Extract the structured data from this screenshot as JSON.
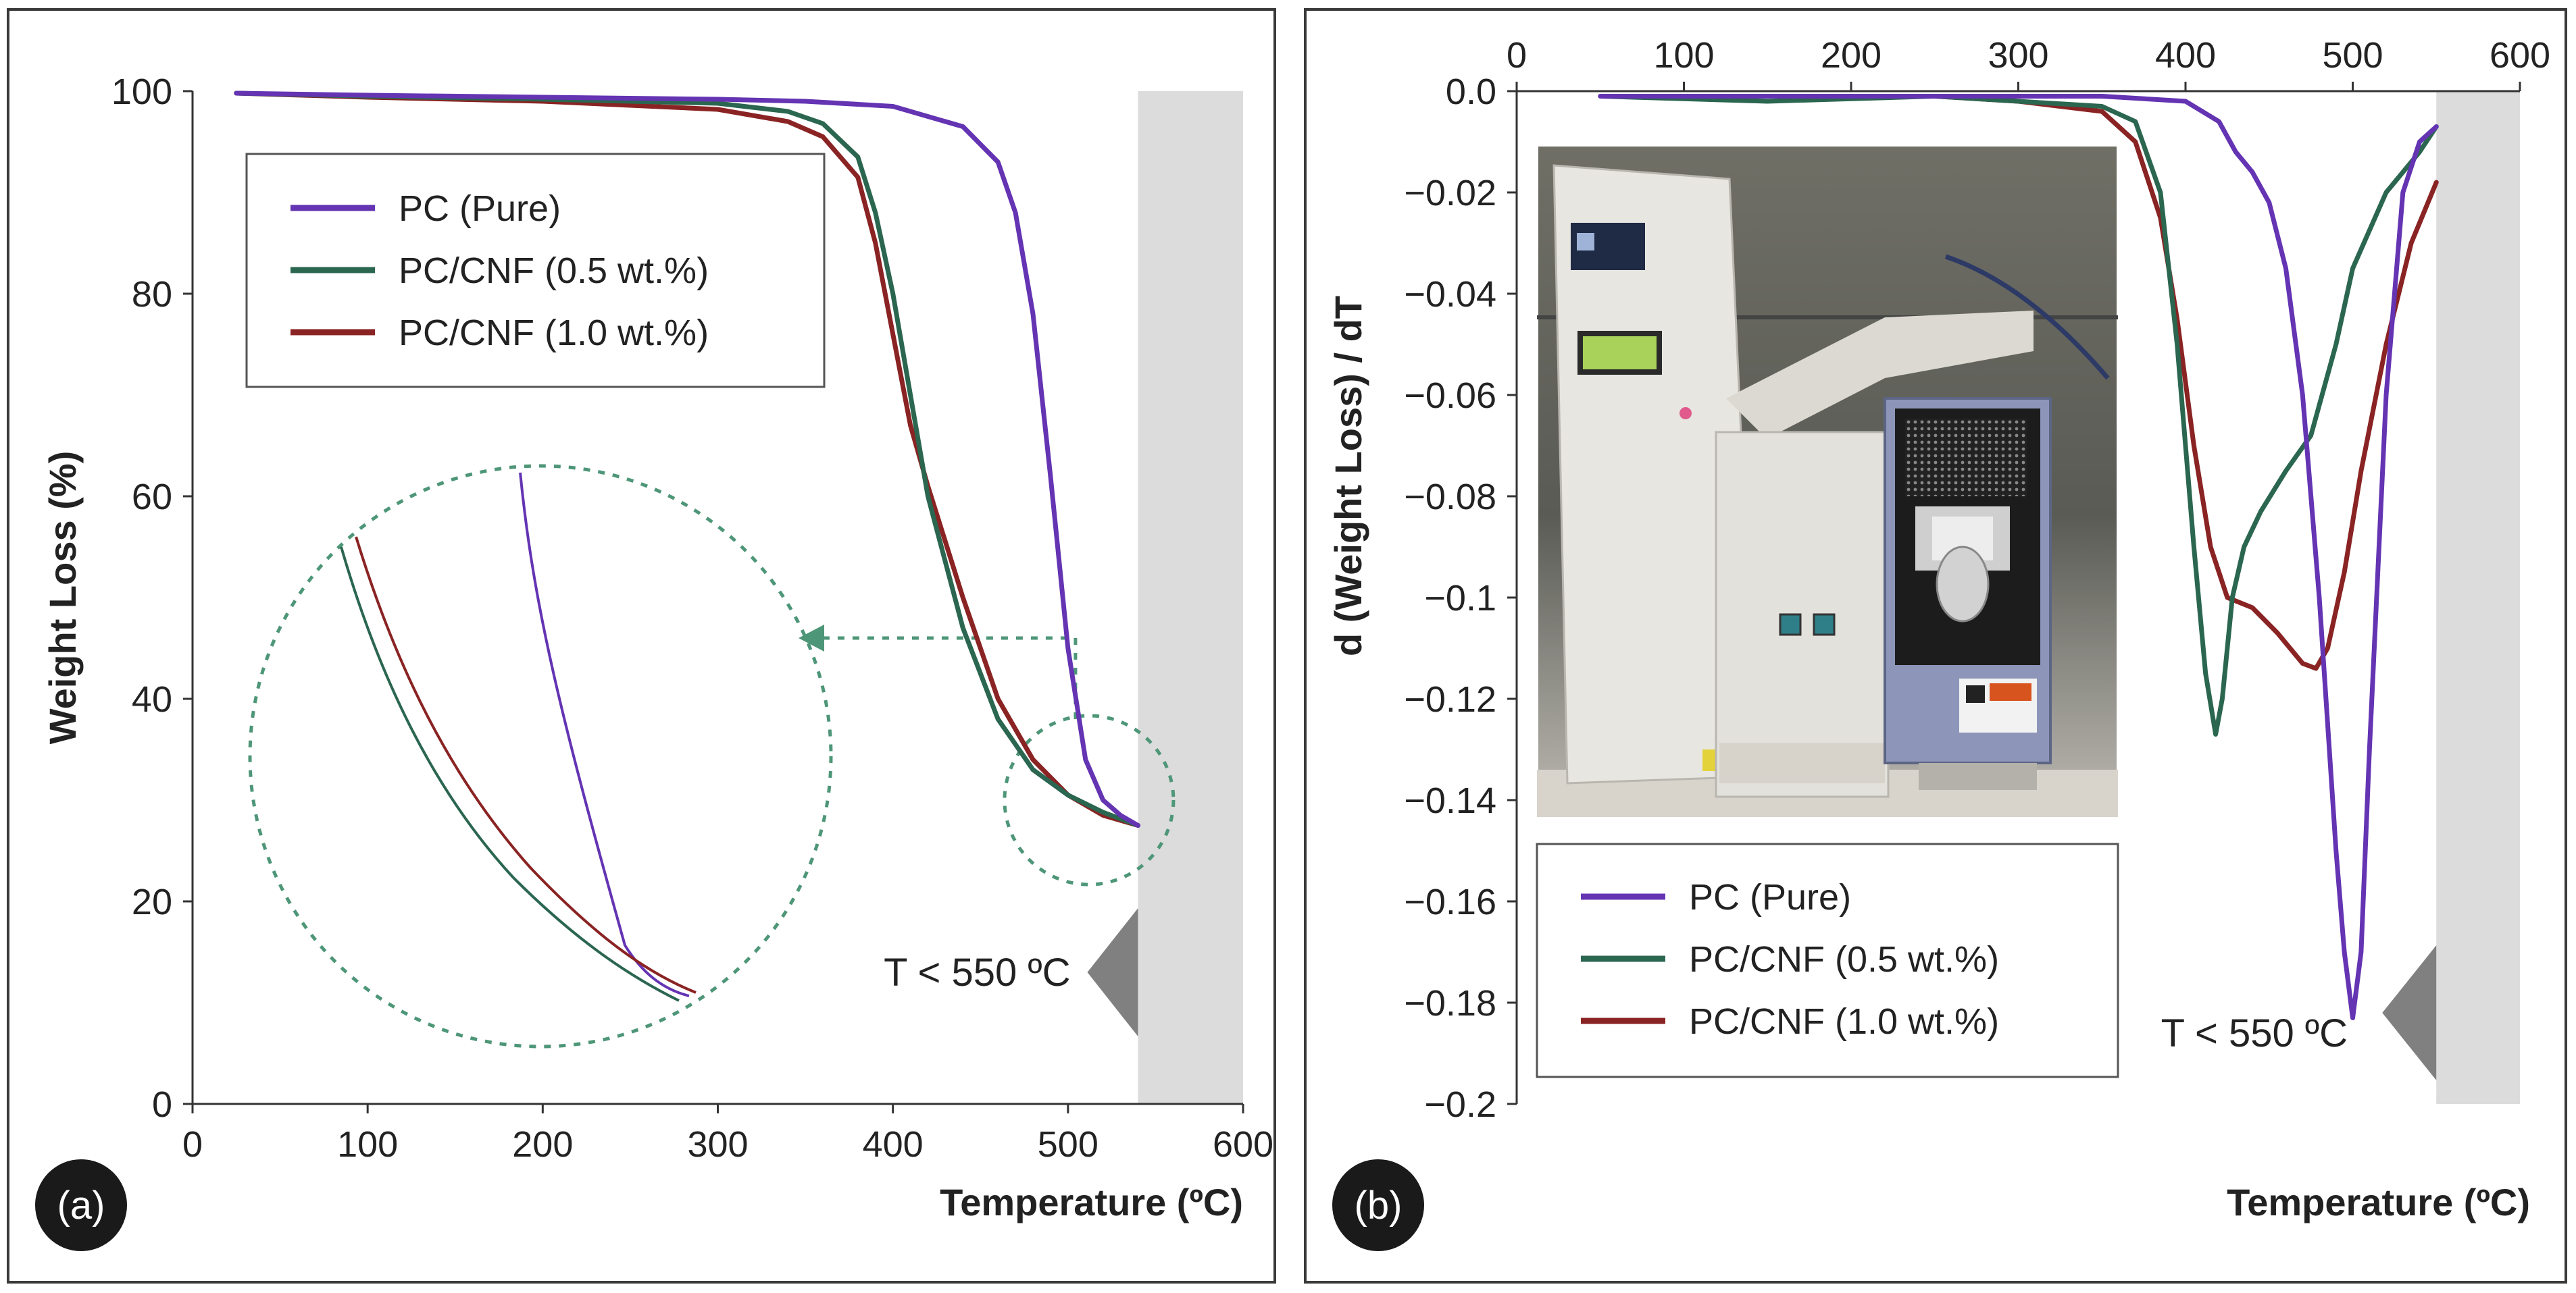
{
  "colors": {
    "pc_pure": "#6434b3",
    "pc_cnf_05": "#2b6650",
    "pc_cnf_10": "#8a2323",
    "region": "#dcdcdc",
    "marker": "#808080",
    "zoom": "#4e9678",
    "label_bg": "#1a1a1a"
  },
  "chart_data": [
    {
      "panel_label": "(a)",
      "type": "line",
      "title": "",
      "xlabel": "Temperature (ºC)",
      "ylabel": "Weight Loss (%)",
      "xlim": [
        0,
        600
      ],
      "ylim": [
        0,
        100
      ],
      "xticks": [
        "0",
        "100",
        "200",
        "300",
        "400",
        "500",
        "600"
      ],
      "yticks": [
        "0",
        "20",
        "40",
        "60",
        "80",
        "100"
      ],
      "legend_position": "upper-left",
      "grid": false,
      "shaded_region": {
        "from": 540,
        "to": 600
      },
      "annotation": "T < 550 ºC",
      "zoom_inset": true,
      "series": [
        {
          "name": "PC (Pure)",
          "color_key": "pc_pure",
          "x": [
            25,
            100,
            200,
            300,
            350,
            400,
            440,
            460,
            470,
            480,
            490,
            500,
            510,
            520,
            530,
            540
          ],
          "y": [
            99.8,
            99.6,
            99.4,
            99.2,
            99.0,
            98.5,
            96.5,
            93,
            88,
            78,
            62,
            45,
            34,
            30,
            28.5,
            27.5
          ]
        },
        {
          "name": "PC/CNF (0.5 wt.%)",
          "color_key": "pc_cnf_05",
          "x": [
            25,
            100,
            200,
            300,
            340,
            360,
            380,
            390,
            400,
            410,
            420,
            440,
            460,
            480,
            500,
            520,
            540
          ],
          "y": [
            99.8,
            99.5,
            99.2,
            98.8,
            98.0,
            96.8,
            93.5,
            88,
            80,
            70,
            60,
            47,
            38,
            33,
            30.5,
            28.8,
            27.5
          ]
        },
        {
          "name": "PC/CNF (1.0 wt.%)",
          "color_key": "pc_cnf_10",
          "x": [
            25,
            100,
            200,
            300,
            340,
            360,
            380,
            390,
            400,
            410,
            420,
            440,
            460,
            480,
            500,
            520,
            540
          ],
          "y": [
            99.8,
            99.4,
            99.0,
            98.2,
            97.0,
            95.5,
            91.5,
            85,
            76,
            67,
            61,
            50,
            40,
            34,
            30.5,
            28.5,
            27.5
          ]
        }
      ]
    },
    {
      "panel_label": "(b)",
      "type": "line",
      "title": "",
      "xlabel": "Temperature (ºC)",
      "ylabel": "d (Weight Loss) / dT",
      "x_axis_position": "top",
      "xlim": [
        0,
        600
      ],
      "ylim": [
        -0.2,
        0.0
      ],
      "xticks": [
        "0",
        "100",
        "200",
        "300",
        "400",
        "500",
        "600"
      ],
      "yticks": [
        "0.0",
        "−0.02",
        "−0.04",
        "−0.06",
        "−0.08",
        "−0.1",
        "−0.12",
        "−0.14",
        "−0.16",
        "−0.18",
        "−0.2"
      ],
      "legend_position": "lower-left",
      "grid": false,
      "shaded_region": {
        "from": 550,
        "to": 600
      },
      "annotation": "T < 550 ºC",
      "inset_photo": true,
      "series": [
        {
          "name": "PC (Pure)",
          "color_key": "pc_pure",
          "x": [
            50,
            150,
            250,
            350,
            400,
            420,
            430,
            440,
            450,
            460,
            470,
            480,
            485,
            490,
            495,
            500,
            505,
            510,
            520,
            530,
            540,
            550
          ],
          "y": [
            -0.001,
            -0.001,
            -0.001,
            -0.001,
            -0.002,
            -0.006,
            -0.012,
            -0.016,
            -0.022,
            -0.035,
            -0.06,
            -0.1,
            -0.125,
            -0.15,
            -0.17,
            -0.183,
            -0.17,
            -0.13,
            -0.06,
            -0.02,
            -0.01,
            -0.007
          ]
        },
        {
          "name": "PC/CNF (0.5 wt.%)",
          "color_key": "pc_cnf_05",
          "x": [
            50,
            150,
            250,
            300,
            350,
            370,
            385,
            395,
            405,
            412,
            418,
            422,
            428,
            435,
            445,
            460,
            475,
            490,
            500,
            520,
            540,
            550
          ],
          "y": [
            -0.001,
            -0.002,
            -0.001,
            -0.002,
            -0.003,
            -0.006,
            -0.02,
            -0.05,
            -0.09,
            -0.115,
            -0.127,
            -0.12,
            -0.1,
            -0.09,
            -0.083,
            -0.075,
            -0.068,
            -0.05,
            -0.035,
            -0.02,
            -0.012,
            -0.007
          ]
        },
        {
          "name": "PC/CNF (1.0 wt.%)",
          "color_key": "pc_cnf_10",
          "x": [
            70,
            150,
            250,
            300,
            350,
            370,
            385,
            395,
            405,
            415,
            425,
            440,
            455,
            470,
            478,
            485,
            495,
            505,
            520,
            535,
            550
          ],
          "y": [
            -0.001,
            -0.001,
            -0.001,
            -0.002,
            -0.004,
            -0.01,
            -0.025,
            -0.045,
            -0.07,
            -0.09,
            -0.1,
            -0.102,
            -0.107,
            -0.113,
            -0.114,
            -0.11,
            -0.095,
            -0.075,
            -0.05,
            -0.03,
            -0.018
          ]
        }
      ]
    }
  ]
}
